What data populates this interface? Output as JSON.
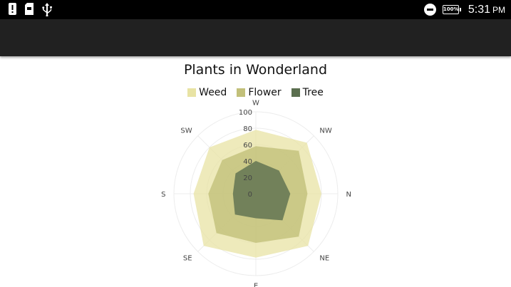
{
  "status_bar": {
    "time": "5:31",
    "ampm": "PM",
    "battery": "100%",
    "icons": [
      "alert-notification-icon",
      "sd-card-icon",
      "usb-icon",
      "do-not-disturb-icon",
      "battery-icon"
    ]
  },
  "app_bar": {
    "color": "#212121"
  },
  "chart_data": {
    "type": "radar",
    "title": "Plants in Wonderland",
    "categories": [
      "N",
      "NE",
      "E",
      "SE",
      "S",
      "SW",
      "W",
      "NW"
    ],
    "rlim": [
      0,
      100
    ],
    "ticks": [
      0,
      20,
      40,
      60,
      80,
      100
    ],
    "grid": true,
    "legend_position": "top",
    "series": [
      {
        "name": "Weed",
        "color": "#e8e3a4",
        "values": [
          80,
          90,
          78,
          90,
          76,
          80,
          78,
          88
        ]
      },
      {
        "name": "Flower",
        "color": "#c2c07a",
        "values": [
          63,
          74,
          60,
          68,
          58,
          58,
          58,
          74
        ]
      },
      {
        "name": "Tree",
        "color": "#5b6f4f",
        "values": [
          42,
          46,
          30,
          36,
          28,
          35,
          40,
          40
        ]
      }
    ]
  }
}
